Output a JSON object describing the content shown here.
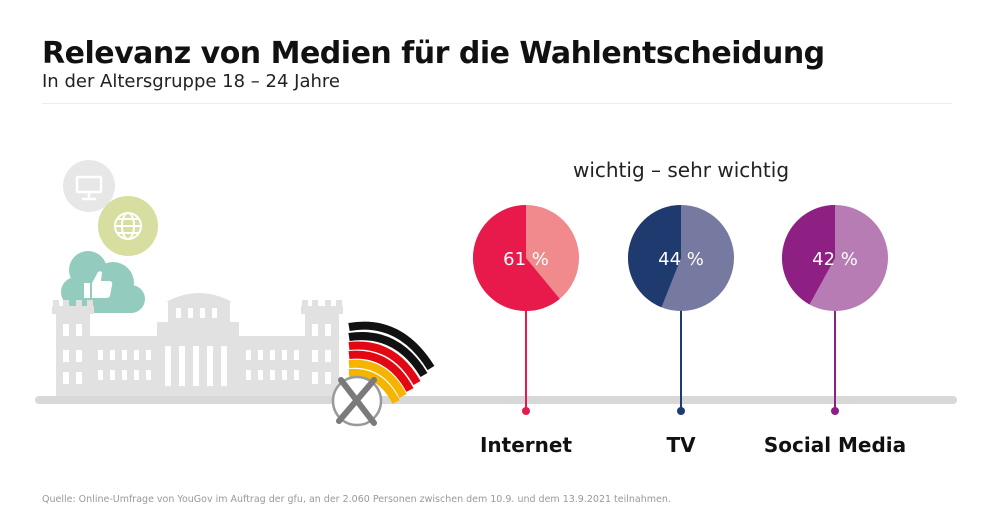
{
  "title": "Relevanz von Medien für die Wahlentscheidung",
  "subtitle": "In der Altersgruppe 18 – 24 Jahre",
  "source": "Quelle: Online-Umfrage von YouGov im Auftrag der gfu, an der 2.060 Personen zwischen dem 10.9. und dem 13.9.2021 teilnahmen.",
  "chart_data": {
    "type": "pie",
    "title": "Relevanz von Medien für die Wahlentscheidung",
    "subtitle": "In der Altersgruppe 18 – 24 Jahre",
    "group_label": "wichtig – sehr wichtig",
    "categories": [
      "Internet",
      "TV",
      "Social Media"
    ],
    "values": [
      61,
      44,
      42
    ],
    "value_labels": [
      "61 %",
      "44 %",
      "42 %"
    ],
    "unit": "%",
    "colors": [
      {
        "main": "#e8194b",
        "rest": "#f08a8d"
      },
      {
        "main": "#1f3a6e",
        "rest": "#777aa0"
      },
      {
        "main": "#8e2083",
        "rest": "#b67cb3"
      }
    ]
  }
}
